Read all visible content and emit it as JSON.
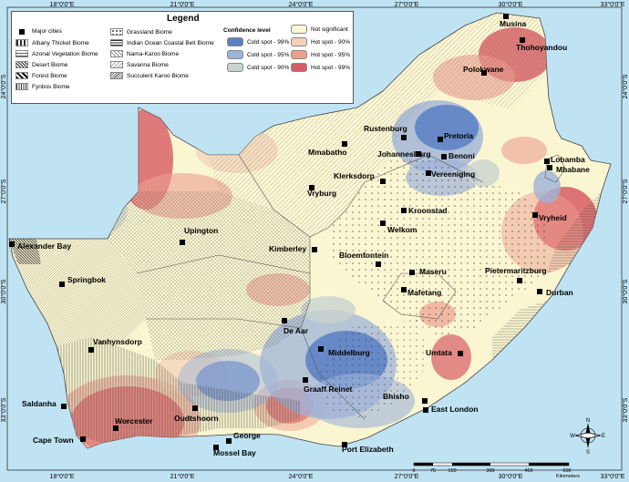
{
  "legend": {
    "title": "Legend",
    "items": [
      {
        "label": "Major cities",
        "pattern": "city"
      },
      {
        "label": "Albany Thicket Biome",
        "pattern": "dash"
      },
      {
        "label": "Azonal Vegetation Biome",
        "pattern": "cross"
      },
      {
        "label": "Desert Biome",
        "pattern": "diag-dense"
      },
      {
        "label": "Forest Biome",
        "pattern": "diag-bold"
      },
      {
        "label": "Fynbos Biome",
        "pattern": "vert"
      },
      {
        "label": "Grassland Biome",
        "pattern": "dots"
      },
      {
        "label": "Indian Ocean Coastal Belt Biome",
        "pattern": "horiz"
      },
      {
        "label": "Nama-Karoo Biome",
        "pattern": "grid"
      },
      {
        "label": "Savanna Biome",
        "pattern": "diag-light"
      },
      {
        "label": "Succulent Karoo Biome",
        "pattern": "diag-fine"
      }
    ],
    "confidence_title": "Confidence level",
    "confidence": [
      {
        "label": "Cold spot - 99%",
        "color": "#5b7fc4"
      },
      {
        "label": "Cold spot - 95%",
        "color": "#9fb3d8"
      },
      {
        "label": "Cold spot - 90%",
        "color": "#c9d3cf"
      },
      {
        "label": "Not significant",
        "color": "#fbf6d2"
      },
      {
        "label": "Hot spot - 90%",
        "color": "#f4d1b6"
      },
      {
        "label": "Hot spot - 95%",
        "color": "#ec9f8f"
      },
      {
        "label": "Hot spot - 99%",
        "color": "#d75c64"
      }
    ]
  },
  "cities": [
    {
      "name": "Musina"
    },
    {
      "name": "Thohoyandou"
    },
    {
      "name": "Polokwane"
    },
    {
      "name": "Rustenburg"
    },
    {
      "name": "Pretoria"
    },
    {
      "name": "Mmabatho"
    },
    {
      "name": "Johannesburg"
    },
    {
      "name": "Benoni"
    },
    {
      "name": "Vereeniging"
    },
    {
      "name": "Klerksdorp"
    },
    {
      "name": "Lobamba"
    },
    {
      "name": "Mbabane"
    },
    {
      "name": "Vryburg"
    },
    {
      "name": "Kroonstad"
    },
    {
      "name": "Vryheid"
    },
    {
      "name": "Welkom"
    },
    {
      "name": "Upington"
    },
    {
      "name": "Alexander Bay"
    },
    {
      "name": "Kimberley"
    },
    {
      "name": "Bloemfontein"
    },
    {
      "name": "Springbok"
    },
    {
      "name": "Maseru"
    },
    {
      "name": "Pietermaritzburg"
    },
    {
      "name": "Durban"
    },
    {
      "name": "Mafetang"
    },
    {
      "name": "De Aar"
    },
    {
      "name": "Vanhynsdorp"
    },
    {
      "name": "Middelburg"
    },
    {
      "name": "Umtata"
    },
    {
      "name": "Graaff Reinet"
    },
    {
      "name": "Bhisho"
    },
    {
      "name": "East London"
    },
    {
      "name": "Saldanha"
    },
    {
      "name": "Worcester"
    },
    {
      "name": "Oudtshoorn"
    },
    {
      "name": "Cape Town"
    },
    {
      "name": "George"
    },
    {
      "name": "Mossel Bay"
    },
    {
      "name": "Port Elizabeth"
    }
  ],
  "axes": {
    "top": [
      "18°0'0\"E",
      "21°0'0\"E",
      "24°0'0\"E",
      "27°0'0\"E",
      "30°0'0\"E",
      "33°0'0\"E"
    ],
    "bottom": [
      "18°0'0\"E",
      "21°0'0\"E",
      "24°0'0\"E",
      "27°0'0\"E",
      "30°0'0\"E",
      "33°0'0\"E"
    ],
    "left": [
      "24°0'0\"S",
      "27°0'0\"S",
      "30°0'0\"S",
      "33°0'0\"S"
    ],
    "right": [
      "24°0'0\"S",
      "27°0'0\"S",
      "30°0'0\"S",
      "33°0'0\"S"
    ]
  },
  "scale_bar": {
    "ticks": [
      "0",
      "75",
      "150",
      "300",
      "450",
      "600"
    ],
    "unit": "Kilometers"
  },
  "north_arrow": {
    "n": "N",
    "s": "S",
    "e": "E",
    "w": "W"
  }
}
